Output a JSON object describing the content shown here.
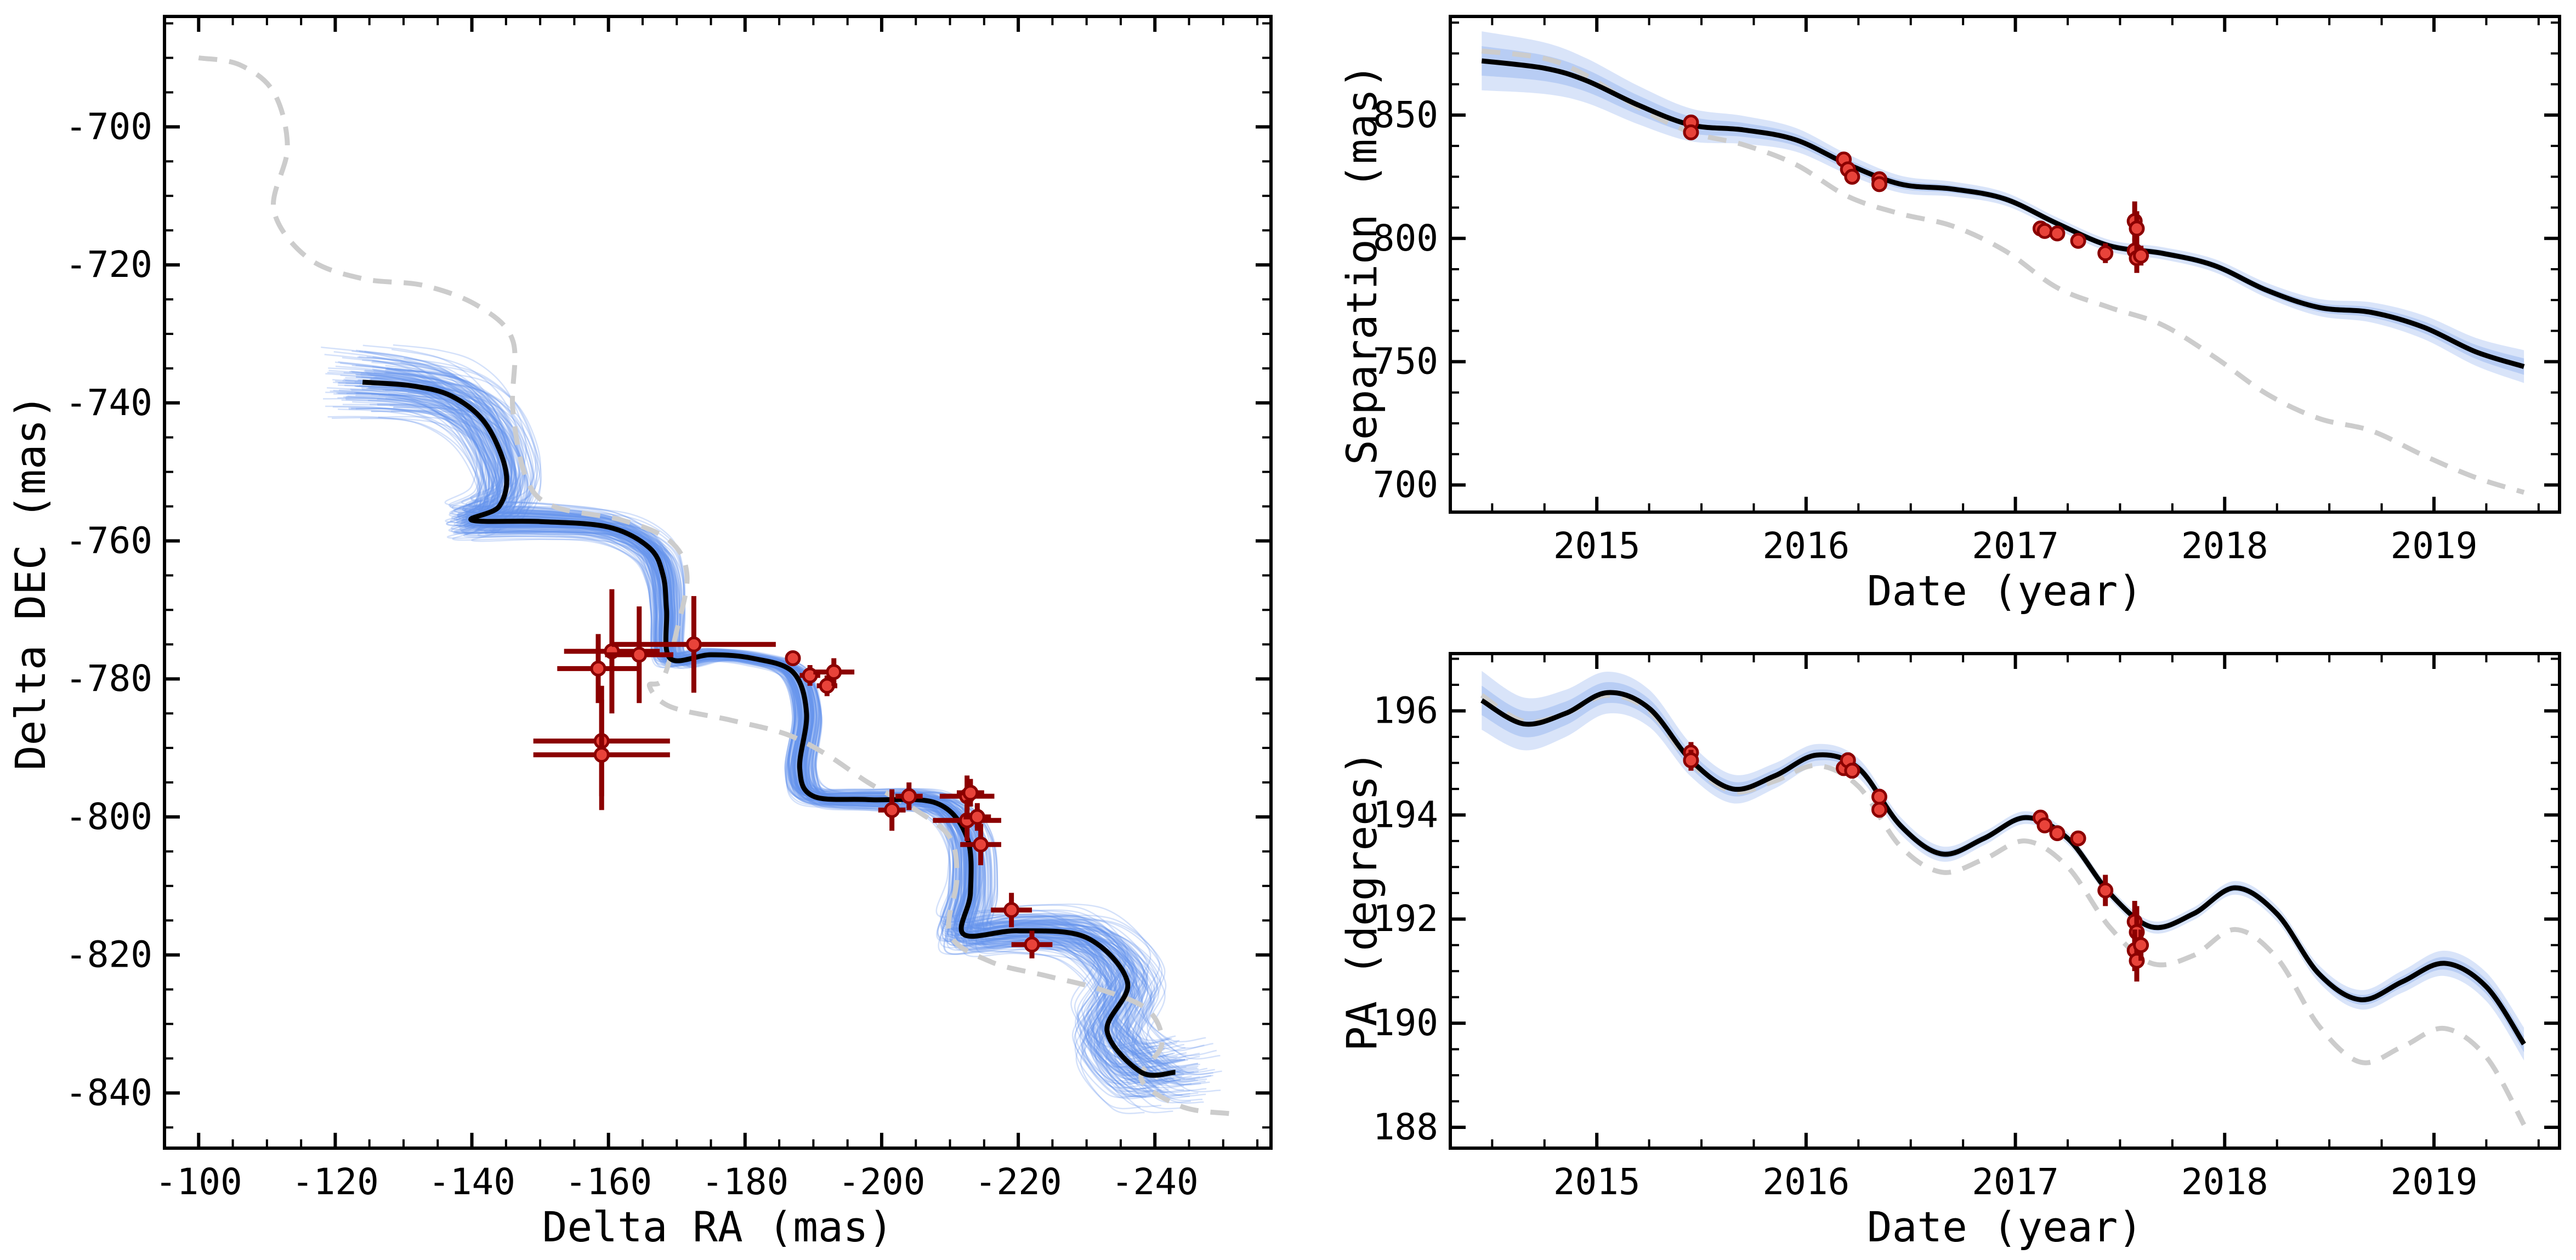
{
  "chart_data": [
    {
      "type": "line",
      "panel": "astrometry-sky",
      "xlabel": "Delta RA (mas)",
      "ylabel": "Delta DEC (mas)",
      "xlim": [
        -95,
        -257
      ],
      "ylim": [
        -848,
        -684
      ],
      "x_ticks": [
        -100,
        -120,
        -140,
        -160,
        -180,
        -200,
        -220,
        -240
      ],
      "y_ticks": [
        -700,
        -720,
        -740,
        -760,
        -780,
        -800,
        -820,
        -840
      ],
      "grid": false,
      "colors": {
        "best_fit": "#000000",
        "samples": "#6495ED",
        "alt_model": "#cccccc",
        "data_outer": "#8b0000",
        "data_fill": "#e8433a"
      },
      "series": [
        {
          "role": "best-fit",
          "x": [
            -124,
            -131,
            -137,
            -142,
            -145,
            -144,
            -140,
            -150,
            -160,
            -166,
            -168,
            -168.5,
            -169,
            -175,
            -181,
            -187,
            -189,
            -188,
            -190,
            -198,
            -208,
            -212.5,
            -213,
            -212,
            -220,
            -230,
            -236,
            -233,
            -238,
            -243
          ],
          "y": [
            -737,
            -737.5,
            -739,
            -743,
            -750,
            -755,
            -757,
            -757.2,
            -758,
            -761,
            -765,
            -770,
            -777,
            -776.5,
            -777,
            -779,
            -785,
            -793,
            -797,
            -797.5,
            -798,
            -803,
            -811,
            -817,
            -816.5,
            -817.5,
            -824,
            -831,
            -837,
            -837
          ]
        },
        {
          "role": "alternative-model",
          "x": [
            -100,
            -106,
            -111,
            -113,
            -111,
            -116,
            -124,
            -133,
            -141,
            -146,
            -146,
            -148,
            -152,
            -162,
            -169,
            -171.5,
            -170,
            -168,
            -166,
            -169,
            -178,
            -186,
            -192,
            -198,
            -205,
            -210,
            -211,
            -210,
            -216,
            -224,
            -232,
            -239,
            -241,
            -238,
            -244,
            -251
          ],
          "y": [
            -690,
            -691,
            -695,
            -703,
            -712,
            -719,
            -722,
            -723,
            -726,
            -731,
            -741,
            -751,
            -755,
            -757,
            -760,
            -765,
            -773,
            -780,
            -781,
            -784,
            -786,
            -788,
            -791,
            -795,
            -799,
            -803,
            -809,
            -817,
            -821,
            -823,
            -825,
            -828,
            -833,
            -838,
            -842,
            -843
          ]
        }
      ],
      "observations": [
        {
          "x": -158.5,
          "y": -778.5,
          "xerr": 6,
          "yerr": 5
        },
        {
          "x": -160.5,
          "y": -776.0,
          "xerr": 7,
          "yerr": 9
        },
        {
          "x": -164.5,
          "y": -776.5,
          "xerr": 5,
          "yerr": 7
        },
        {
          "x": -172.5,
          "y": -775.0,
          "xerr": 12,
          "yerr": 7
        },
        {
          "x": -159.0,
          "y": -789.0,
          "xerr": 10,
          "yerr": 8
        },
        {
          "x": -159.0,
          "y": -791.0,
          "xerr": 10,
          "yerr": 8
        },
        {
          "x": -187.0,
          "y": -777.0,
          "xerr": 1,
          "yerr": 1
        },
        {
          "x": -189.5,
          "y": -779.5,
          "xerr": 1.5,
          "yerr": 1.5
        },
        {
          "x": -192.0,
          "y": -781.0,
          "xerr": 1.5,
          "yerr": 1.5
        },
        {
          "x": -193.0,
          "y": -779.0,
          "xerr": 3,
          "yerr": 2
        },
        {
          "x": -201.5,
          "y": -799.0,
          "xerr": 2,
          "yerr": 3
        },
        {
          "x": -204.0,
          "y": -797.0,
          "xerr": 2,
          "yerr": 2
        },
        {
          "x": -212.5,
          "y": -797.0,
          "xerr": 4,
          "yerr": 3
        },
        {
          "x": -213.0,
          "y": -796.5,
          "xerr": 2,
          "yerr": 2
        },
        {
          "x": -212.5,
          "y": -800.5,
          "xerr": 5,
          "yerr": 3
        },
        {
          "x": -214.5,
          "y": -804.0,
          "xerr": 3,
          "yerr": 3
        },
        {
          "x": -214.0,
          "y": -800.0,
          "xerr": 2,
          "yerr": 2
        },
        {
          "x": -219.0,
          "y": -813.5,
          "xerr": 3,
          "yerr": 2.5
        },
        {
          "x": -222.0,
          "y": -818.5,
          "xerr": 3,
          "yerr": 2
        }
      ]
    },
    {
      "type": "line",
      "panel": "separation-vs-time",
      "xlabel": "Date (year)",
      "ylabel": "Separation (mas)",
      "xlim": [
        2014.3,
        2019.6
      ],
      "ylim": [
        689,
        890
      ],
      "x_ticks": [
        2015,
        2016,
        2017,
        2018,
        2019
      ],
      "y_ticks": [
        700,
        750,
        800,
        850
      ],
      "grid": false,
      "series": [
        {
          "role": "best-fit",
          "x": [
            2014.45,
            2014.75,
            2014.95,
            2015.2,
            2015.45,
            2015.7,
            2015.95,
            2016.2,
            2016.45,
            2016.7,
            2016.95,
            2017.2,
            2017.45,
            2017.7,
            2017.95,
            2018.2,
            2018.45,
            2018.7,
            2018.95,
            2019.2,
            2019.43
          ],
          "y": [
            872,
            869,
            864,
            854,
            846,
            844,
            840,
            830,
            822,
            820,
            816,
            806,
            797,
            794,
            789,
            779,
            772,
            770,
            764,
            754,
            748
          ]
        },
        {
          "role": "alternative-model",
          "x": [
            2014.45,
            2014.75,
            2014.95,
            2015.2,
            2015.45,
            2015.7,
            2015.95,
            2016.2,
            2016.45,
            2016.7,
            2016.95,
            2017.2,
            2017.45,
            2017.7,
            2017.95,
            2018.2,
            2018.45,
            2018.7,
            2018.95,
            2019.2,
            2019.43
          ],
          "y": [
            876,
            873,
            866,
            853,
            843,
            838,
            830,
            817,
            810,
            805,
            795,
            780,
            772,
            765,
            752,
            737,
            727,
            722,
            712,
            703,
            697
          ]
        }
      ],
      "observations": [
        {
          "x": 2015.45,
          "y": 847,
          "yerr": 3
        },
        {
          "x": 2015.45,
          "y": 843,
          "yerr": 3
        },
        {
          "x": 2016.18,
          "y": 832,
          "yerr": 2
        },
        {
          "x": 2016.2,
          "y": 828,
          "yerr": 2
        },
        {
          "x": 2016.22,
          "y": 825,
          "yerr": 2
        },
        {
          "x": 2016.35,
          "y": 824,
          "yerr": 2
        },
        {
          "x": 2016.35,
          "y": 822,
          "yerr": 2
        },
        {
          "x": 2017.12,
          "y": 804,
          "yerr": 1.5
        },
        {
          "x": 2017.14,
          "y": 803,
          "yerr": 1.5
        },
        {
          "x": 2017.2,
          "y": 802,
          "yerr": 1.5
        },
        {
          "x": 2017.3,
          "y": 799,
          "yerr": 1.5
        },
        {
          "x": 2017.43,
          "y": 794,
          "yerr": 4
        },
        {
          "x": 2017.57,
          "y": 807,
          "yerr": 8
        },
        {
          "x": 2017.58,
          "y": 804,
          "yerr": 7
        },
        {
          "x": 2017.57,
          "y": 795,
          "yerr": 5
        },
        {
          "x": 2017.58,
          "y": 792,
          "yerr": 6
        },
        {
          "x": 2017.6,
          "y": 793,
          "yerr": 4
        }
      ]
    },
    {
      "type": "line",
      "panel": "position-angle-vs-time",
      "xlabel": "Date (year)",
      "ylabel": "PA (degrees)",
      "xlim": [
        2014.3,
        2019.6
      ],
      "ylim": [
        187.6,
        197.1
      ],
      "x_ticks": [
        2015,
        2016,
        2017,
        2018,
        2019
      ],
      "y_ticks": [
        188,
        190,
        192,
        194,
        196
      ],
      "grid": false,
      "series": [
        {
          "role": "best-fit",
          "x": [
            2014.45,
            2014.65,
            2014.85,
            2015.05,
            2015.25,
            2015.45,
            2015.65,
            2015.85,
            2016.05,
            2016.25,
            2016.45,
            2016.65,
            2016.85,
            2017.05,
            2017.25,
            2017.45,
            2017.65,
            2017.85,
            2018.05,
            2018.25,
            2018.45,
            2018.65,
            2018.85,
            2019.05,
            2019.25,
            2019.43
          ],
          "y": [
            196.2,
            195.75,
            195.95,
            196.35,
            196.05,
            195.05,
            194.5,
            194.75,
            195.15,
            194.9,
            193.8,
            193.25,
            193.55,
            193.95,
            193.55,
            192.5,
            191.85,
            192.1,
            192.6,
            192.1,
            190.95,
            190.45,
            190.8,
            191.15,
            190.7,
            189.6
          ]
        },
        {
          "role": "alternative-model",
          "x": [
            2014.45,
            2014.65,
            2014.85,
            2015.05,
            2015.25,
            2015.45,
            2015.65,
            2015.85,
            2016.05,
            2016.25,
            2016.45,
            2016.65,
            2016.85,
            2017.05,
            2017.25,
            2017.45,
            2017.65,
            2017.85,
            2018.05,
            2018.25,
            2018.45,
            2018.65,
            2018.85,
            2019.05,
            2019.25,
            2019.43
          ],
          "y": [
            196.3,
            195.8,
            195.95,
            196.3,
            196.0,
            195.0,
            194.45,
            194.65,
            194.95,
            194.55,
            193.4,
            192.9,
            193.15,
            193.5,
            193.0,
            191.85,
            191.15,
            191.3,
            191.8,
            191.25,
            189.95,
            189.25,
            189.55,
            189.9,
            189.35,
            188.05
          ]
        }
      ],
      "observations": [
        {
          "x": 2015.45,
          "y": 195.2,
          "yerr": 0.2
        },
        {
          "x": 2015.45,
          "y": 195.05,
          "yerr": 0.2
        },
        {
          "x": 2016.18,
          "y": 194.9,
          "yerr": 0.15
        },
        {
          "x": 2016.2,
          "y": 195.05,
          "yerr": 0.15
        },
        {
          "x": 2016.22,
          "y": 194.85,
          "yerr": 0.15
        },
        {
          "x": 2016.35,
          "y": 194.35,
          "yerr": 0.15
        },
        {
          "x": 2016.35,
          "y": 194.1,
          "yerr": 0.15
        },
        {
          "x": 2017.12,
          "y": 193.95,
          "yerr": 0.1
        },
        {
          "x": 2017.14,
          "y": 193.8,
          "yerr": 0.1
        },
        {
          "x": 2017.2,
          "y": 193.65,
          "yerr": 0.1
        },
        {
          "x": 2017.3,
          "y": 193.55,
          "yerr": 0.1
        },
        {
          "x": 2017.43,
          "y": 192.55,
          "yerr": 0.3
        },
        {
          "x": 2017.57,
          "y": 191.95,
          "yerr": 0.4
        },
        {
          "x": 2017.58,
          "y": 191.75,
          "yerr": 0.5
        },
        {
          "x": 2017.57,
          "y": 191.4,
          "yerr": 0.4
        },
        {
          "x": 2017.58,
          "y": 191.2,
          "yerr": 0.4
        },
        {
          "x": 2017.6,
          "y": 191.5,
          "yerr": 0.3
        }
      ]
    }
  ]
}
